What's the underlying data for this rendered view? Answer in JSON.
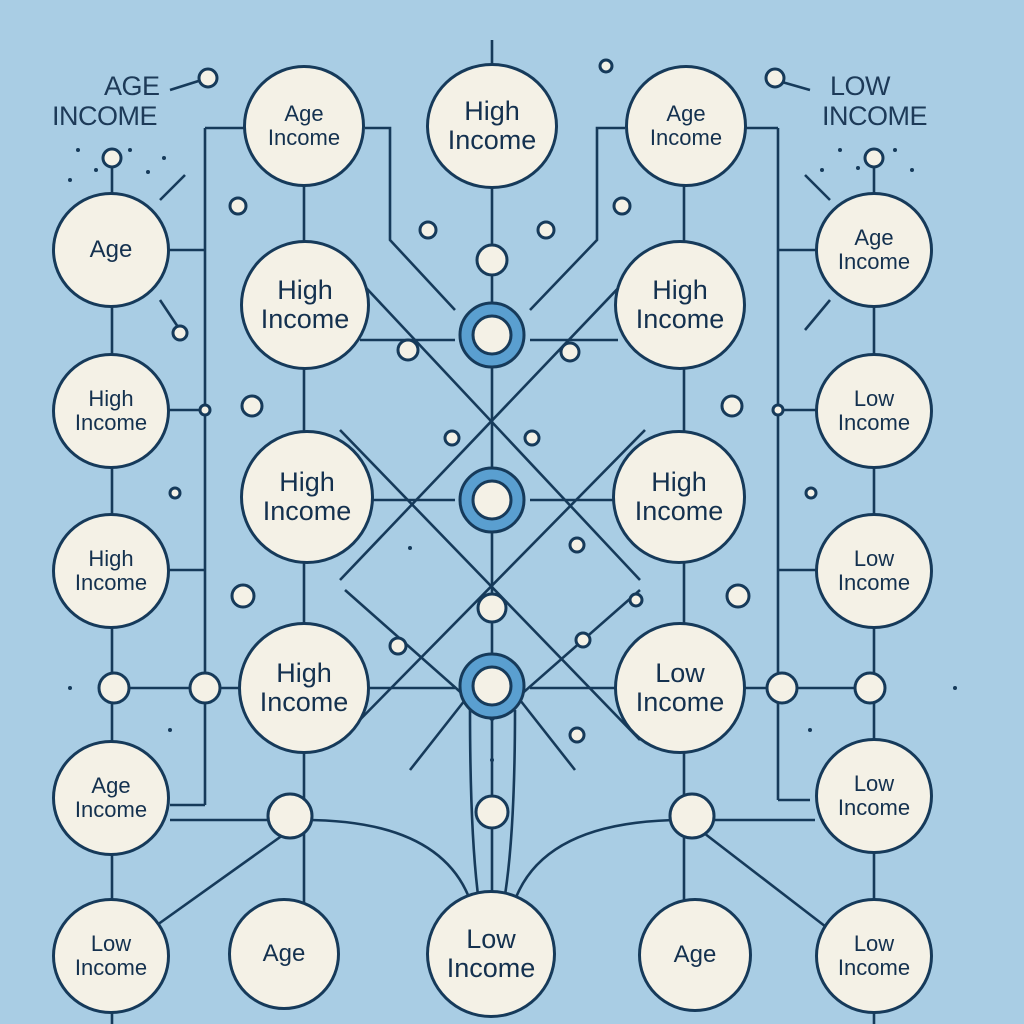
{
  "corner_labels": {
    "left": {
      "line1": "AGE",
      "line2": "INCOME"
    },
    "right": {
      "line1": "LOW",
      "line2": "INCOME"
    }
  },
  "nodes": {
    "top_age_income_left": {
      "line1": "Age",
      "line2": "Income"
    },
    "top_high_income_center": {
      "line1": "High",
      "line2": "Income"
    },
    "top_age_income_right": {
      "line1": "Age",
      "line2": "Income"
    },
    "left_age": {
      "line1": "Age",
      "line2": ""
    },
    "left_high_income_1": {
      "line1": "High",
      "line2": "Income"
    },
    "left_high_income_2": {
      "line1": "High",
      "line2": "Income"
    },
    "left_age_income": {
      "line1": "Age",
      "line2": "Income"
    },
    "left_low_income": {
      "line1": "Low",
      "line2": "Income"
    },
    "inner_left_high_1": {
      "line1": "High",
      "line2": "Income"
    },
    "inner_left_high_2": {
      "line1": "High",
      "line2": "Income"
    },
    "inner_left_high_3": {
      "line1": "High",
      "line2": "Income"
    },
    "bottom_age_left": {
      "line1": "Age",
      "line2": ""
    },
    "inner_right_high_1": {
      "line1": "High",
      "line2": "Income"
    },
    "inner_right_high_2": {
      "line1": "High",
      "line2": "Income"
    },
    "inner_right_low": {
      "line1": "Low",
      "line2": "Income"
    },
    "bottom_age_right": {
      "line1": "Age",
      "line2": ""
    },
    "bottom_low_income_center": {
      "line1": "Low",
      "line2": "Income"
    },
    "right_age_income": {
      "line1": "Age",
      "line2": "Income"
    },
    "right_low_income_1": {
      "line1": "Low",
      "line2": "Income"
    },
    "right_low_income_2": {
      "line1": "Low",
      "line2": "Income"
    },
    "right_low_income_3": {
      "line1": "Low",
      "line2": "Income"
    },
    "right_low_income_4": {
      "line1": "Low",
      "line2": "Income"
    }
  },
  "colors": {
    "background": "#a9cde4",
    "node_fill": "#f4f1e6",
    "stroke": "#163a5a",
    "hub_ring": "#5a9fd0"
  }
}
